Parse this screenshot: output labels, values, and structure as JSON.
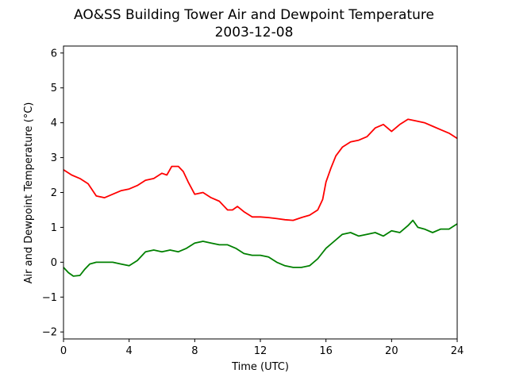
{
  "chart_data": {
    "type": "line",
    "title": "AO&SS Building Tower Air and Dewpoint Temperature",
    "subtitle": "2003-12-08",
    "xlabel": "Time (UTC)",
    "ylabel": "Air and Dewpoint Temperature (°C)",
    "xlim": [
      0,
      24
    ],
    "ylim": [
      -2.2,
      6.2
    ],
    "xticks": [
      0,
      4,
      8,
      12,
      16,
      20,
      24
    ],
    "yticks": [
      -2,
      -1,
      0,
      1,
      2,
      3,
      4,
      5,
      6
    ],
    "grid": false,
    "series": [
      {
        "color": "#ff0000",
        "x": [
          0,
          0.5,
          1,
          1.5,
          2,
          2.5,
          3,
          3.5,
          4,
          4.5,
          5,
          5.5,
          6,
          6.3,
          6.6,
          7,
          7.3,
          7.6,
          8,
          8.5,
          9,
          9.5,
          10,
          10.3,
          10.6,
          11,
          11.5,
          12,
          12.5,
          13,
          13.5,
          14,
          14.5,
          15,
          15.5,
          15.8,
          16,
          16.3,
          16.6,
          17,
          17.5,
          18,
          18.5,
          19,
          19.5,
          20,
          20.5,
          21,
          21.5,
          22,
          22.5,
          23,
          23.5,
          24
        ],
        "y": [
          2.65,
          2.5,
          2.4,
          2.25,
          1.9,
          1.85,
          1.95,
          2.05,
          2.1,
          2.2,
          2.35,
          2.4,
          2.55,
          2.5,
          2.75,
          2.75,
          2.6,
          2.3,
          1.95,
          2.0,
          1.85,
          1.75,
          1.5,
          1.5,
          1.6,
          1.45,
          1.3,
          1.3,
          1.28,
          1.25,
          1.22,
          1.2,
          1.28,
          1.35,
          1.5,
          1.8,
          2.3,
          2.7,
          3.05,
          3.3,
          3.45,
          3.5,
          3.6,
          3.85,
          3.95,
          3.75,
          3.95,
          4.1,
          4.05,
          4.0,
          3.9,
          3.8,
          3.7,
          3.55
        ]
      },
      {
        "color": "#008000",
        "x": [
          0,
          0.3,
          0.6,
          1,
          1.3,
          1.6,
          2,
          2.5,
          3,
          3.5,
          4,
          4.5,
          5,
          5.5,
          6,
          6.5,
          7,
          7.5,
          8,
          8.5,
          9,
          9.5,
          10,
          10.5,
          11,
          11.5,
          12,
          12.5,
          13,
          13.5,
          14,
          14.5,
          15,
          15.5,
          16,
          16.5,
          17,
          17.5,
          18,
          18.5,
          19,
          19.5,
          20,
          20.5,
          21,
          21.3,
          21.6,
          22,
          22.5,
          23,
          23.5,
          24
        ],
        "y": [
          -0.15,
          -0.3,
          -0.4,
          -0.38,
          -0.2,
          -0.05,
          0.0,
          0.0,
          0.0,
          -0.05,
          -0.1,
          0.05,
          0.3,
          0.35,
          0.3,
          0.35,
          0.3,
          0.4,
          0.55,
          0.6,
          0.55,
          0.5,
          0.5,
          0.4,
          0.25,
          0.2,
          0.2,
          0.15,
          0.0,
          -0.1,
          -0.15,
          -0.15,
          -0.1,
          0.1,
          0.4,
          0.6,
          0.8,
          0.85,
          0.75,
          0.8,
          0.85,
          0.75,
          0.9,
          0.85,
          1.05,
          1.2,
          1.0,
          0.95,
          0.85,
          0.95,
          0.95,
          1.1
        ]
      }
    ]
  }
}
